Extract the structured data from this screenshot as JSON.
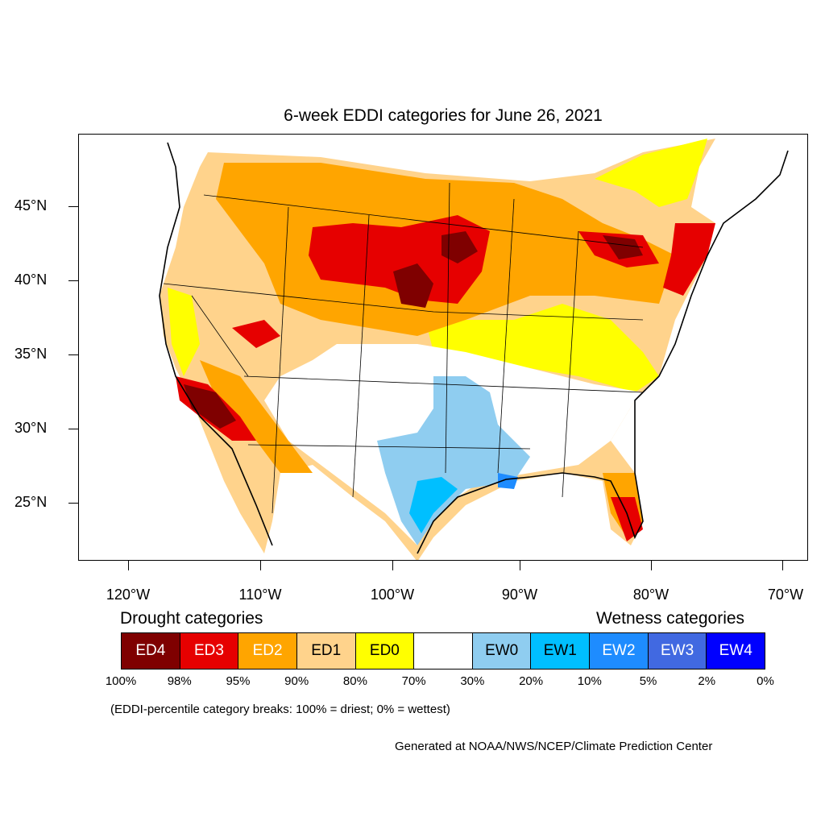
{
  "title": "6-week EDDI categories for June 26, 2021",
  "latitude_labels": [
    "45°N",
    "40°N",
    "35°N",
    "30°N",
    "25°N"
  ],
  "longitude_labels": [
    "120°W",
    "110°W",
    "100°W",
    "90°W",
    "80°W",
    "70°W"
  ],
  "drought_heading": "Drought categories",
  "wetness_heading": "Wetness categories",
  "legend": [
    {
      "label": "ED4",
      "color": "#7f0000",
      "text_color": "#ffffff"
    },
    {
      "label": "ED3",
      "color": "#e60000",
      "text_color": "#ffffff"
    },
    {
      "label": "ED2",
      "color": "#ffa500",
      "text_color": "#ffffff"
    },
    {
      "label": "ED1",
      "color": "#ffd38c",
      "text_color": "#000000"
    },
    {
      "label": "ED0",
      "color": "#ffff00",
      "text_color": "#000000"
    },
    {
      "label": "",
      "color": "#ffffff",
      "text_color": "#000000"
    },
    {
      "label": "EW0",
      "color": "#8fcdf0",
      "text_color": "#000000"
    },
    {
      "label": "EW1",
      "color": "#00bfff",
      "text_color": "#000000"
    },
    {
      "label": "EW2",
      "color": "#1e8cff",
      "text_color": "#ffffff"
    },
    {
      "label": "EW3",
      "color": "#4169e1",
      "text_color": "#ffffff"
    },
    {
      "label": "EW4",
      "color": "#0000ff",
      "text_color": "#ffffff"
    }
  ],
  "percentile_breaks": [
    "100%",
    "98%",
    "95%",
    "90%",
    "80%",
    "70%",
    "30%",
    "20%",
    "10%",
    "5%",
    "2%",
    "0%"
  ],
  "note": "(EDDI-percentile category breaks: 100% = driest; 0% = wettest)",
  "credit": "Generated at NOAA/NWS/NCEP/Climate Prediction Center"
}
